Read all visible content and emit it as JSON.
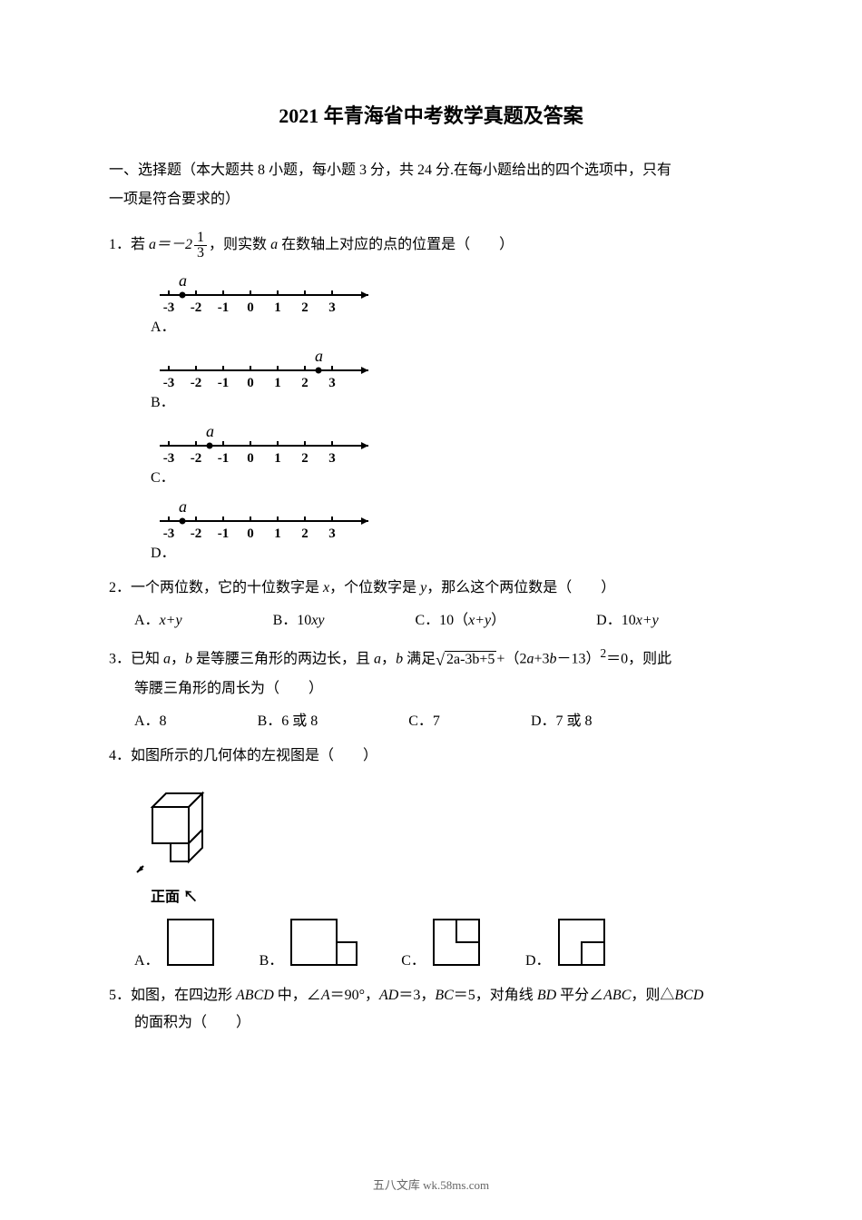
{
  "title": "2021 年青海省中考数学真题及答案",
  "section_intro_1": "一、选择题（本大题共 8 小题，每小题 3 分，共 24 分.在每小题给出的四个选项中，只有",
  "section_intro_2": "一项是符合要求的）",
  "q1": {
    "num": "1．",
    "prefix": "若 ",
    "a_eq": "a＝－2",
    "suffix": "，则实数 ",
    "a_var": "a",
    "suffix2": " 在数轴上对应的点的位置是（　　）",
    "frac_num": "1",
    "frac_den": "3",
    "option_labels": [
      "A．",
      "B．",
      "C．",
      "D．"
    ],
    "ticks": [
      "-3",
      "-2",
      "-1",
      "0",
      "1",
      "2",
      "3"
    ],
    "a_letter": "a",
    "lines": [
      {
        "a_pos": 0.5
      },
      {
        "a_pos": 5.5
      },
      {
        "a_pos": 1.5
      },
      {
        "a_pos": 0.5
      }
    ]
  },
  "q2": {
    "text": "2．一个两位数，它的十位数字是 ",
    "x": "x",
    "mid1": "，个位数字是 ",
    "y": "y",
    "mid2": "，那么这个两位数是（　　）",
    "opts": {
      "A": "A．",
      "A_val": "x+y",
      "B": "B．10",
      "B_val": "xy",
      "C": "C．10（",
      "C_val": "x+y",
      "C_end": "）",
      "D": "D．10",
      "D_val": "x+y"
    }
  },
  "q3": {
    "prefix": "3．已知 ",
    "a": "a",
    "mid1": "，",
    "b": "b",
    "mid2": " 是等腰三角形的两边长，且 ",
    "mid3": "，",
    "mid4": " 满足",
    "radicand": "2a-3b+5",
    "after_sqrt": "+（2",
    "a2": "a",
    "plus": "+3",
    "b2": "b",
    "minus": "－13）",
    "sup": "2",
    "eq": "＝0，则此",
    "line2": "等腰三角形的周长为（　　）",
    "opts": {
      "A": "A．8",
      "B": "B．6 或 8",
      "C": "C．7",
      "D": "D．7 或 8"
    }
  },
  "q4": {
    "text": "4．如图所示的几何体的左视图是（　　）",
    "front_label": "正面",
    "opts": [
      "A．",
      "B．",
      "C．",
      "D．"
    ]
  },
  "q5": {
    "prefix": "5．如图，在四边形 ",
    "abcd": "ABCD",
    "mid1": " 中，∠",
    "A": "A",
    "mid2": "＝90°，",
    "AD": "AD",
    "mid3": "＝3，",
    "BC": "BC",
    "mid4": "＝5，对角线 ",
    "BD": "BD",
    "mid5": " 平分∠",
    "ABC": "ABC",
    "mid6": "，则△",
    "BCD": "BCD",
    "line2": "的面积为（　　）"
  },
  "footer": "五八文库 wk.58ms.com"
}
